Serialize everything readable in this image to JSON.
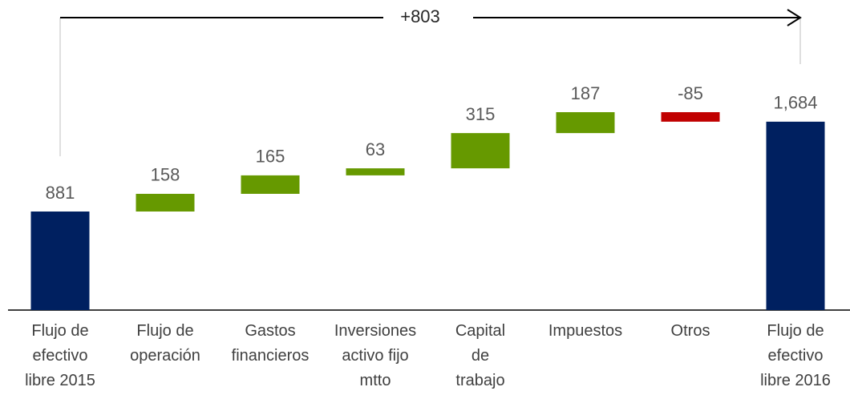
{
  "chart_data": {
    "type": "waterfall",
    "annotation": "+803",
    "categories": [
      "Flujo de\nefectivo\nlibre 2015",
      "Flujo de\noperación",
      "Gastos\nfinancieros",
      "Inversiones\nactivo fijo\nmtto",
      "Capital\nde\ntrabajo",
      "Impuestos",
      "Otros",
      "Flujo de\nefectivo\nlibre 2016"
    ],
    "values": [
      881,
      158,
      165,
      63,
      315,
      187,
      -85,
      1684
    ],
    "value_labels": [
      "881",
      "158",
      "165",
      "63",
      "315",
      "187",
      "-85",
      "1,684"
    ],
    "measure": [
      "total",
      "relative",
      "relative",
      "relative",
      "relative",
      "relative",
      "relative",
      "total"
    ],
    "colors": {
      "total": "#002060",
      "increase": "#669900",
      "decrease": "#c00000"
    }
  }
}
